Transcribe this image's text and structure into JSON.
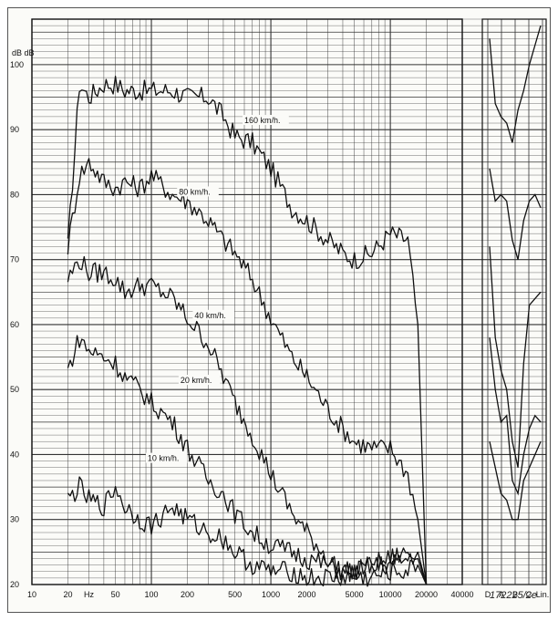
{
  "chart_data": {
    "type": "line",
    "title": "",
    "ylabel": "dB dB",
    "xlabel": "",
    "x_scale": "log",
    "xlim": [
      10,
      40000
    ],
    "ylim": [
      20,
      107
    ],
    "grid": true,
    "legend": "none",
    "x_ticks": [
      {
        "value": 10,
        "label": "10"
      },
      {
        "value": 20,
        "label": "20"
      },
      {
        "value": 30,
        "label": "Hz"
      },
      {
        "value": 50,
        "label": "50"
      },
      {
        "value": 100,
        "label": "100"
      },
      {
        "value": 200,
        "label": "200"
      },
      {
        "value": 500,
        "label": "500"
      },
      {
        "value": 1000,
        "label": "1000"
      },
      {
        "value": 2000,
        "label": "2000"
      },
      {
        "value": 5000,
        "label": "5000"
      },
      {
        "value": 10000,
        "label": "10000"
      },
      {
        "value": 20000,
        "label": "20000"
      },
      {
        "value": 40000,
        "label": "40000"
      }
    ],
    "y_ticks": [
      20,
      30,
      40,
      50,
      60,
      70,
      80,
      90,
      100
    ],
    "weighting_labels": [
      "D",
      "A",
      "B",
      "C",
      "Lin."
    ],
    "series": [
      {
        "name": "160 km/h.",
        "label_at": [
          600,
          91
        ],
        "x": [
          20,
          25,
          30,
          40,
          50,
          60,
          80,
          100,
          150,
          200,
          300,
          400,
          500,
          700,
          1000,
          1500,
          2000,
          3000,
          4000,
          5000,
          7000,
          10000,
          14000,
          17000,
          20000
        ],
        "y": [
          72,
          97,
          95,
          97,
          97,
          96,
          96,
          96,
          96,
          95,
          95,
          92,
          89,
          88,
          84,
          78,
          76,
          73,
          71,
          70,
          71,
          74,
          73,
          60,
          20
        ],
        "w": [
          104,
          94,
          92,
          91,
          88,
          93,
          96,
          100,
          103,
          106
        ]
      },
      {
        "name": "80 km/h.",
        "label_at": [
          170,
          80
        ],
        "x": [
          20,
          25,
          30,
          40,
          50,
          60,
          80,
          100,
          150,
          200,
          300,
          400,
          500,
          700,
          1000,
          1500,
          2000,
          3000,
          4000,
          5000,
          7000,
          10000,
          14000,
          17000,
          20000
        ],
        "y": [
          72,
          83,
          85,
          82,
          81,
          82,
          81,
          83,
          80,
          79,
          76,
          73,
          71,
          67,
          61,
          55,
          52,
          47,
          44,
          42,
          41,
          41,
          37,
          30,
          20
        ],
        "w": [
          84,
          79,
          80,
          79,
          73,
          70,
          76,
          79,
          80,
          78
        ]
      },
      {
        "name": "40 km/h.",
        "label_at": [
          230,
          61
        ],
        "x": [
          20,
          25,
          30,
          40,
          50,
          60,
          80,
          100,
          150,
          200,
          300,
          400,
          500,
          700,
          1000,
          1500,
          2000,
          3000,
          4000,
          5000,
          7000,
          10000,
          14000,
          17000,
          20000
        ],
        "y": [
          67,
          70,
          68,
          68,
          67,
          65,
          66,
          66,
          64,
          61,
          57,
          52,
          48,
          43,
          37,
          31,
          28,
          24,
          22,
          22,
          23,
          24,
          25,
          24,
          20
        ],
        "w": [
          72,
          58,
          53,
          50,
          42,
          38,
          54,
          63,
          64,
          65
        ]
      },
      {
        "name": "20 km/h.",
        "label_at": [
          175,
          51
        ],
        "x": [
          20,
          25,
          30,
          40,
          50,
          60,
          80,
          100,
          150,
          200,
          300,
          400,
          500,
          700,
          1000,
          1500,
          2000,
          3000,
          4000,
          5000,
          7000,
          10000,
          14000,
          17000,
          20000
        ],
        "y": [
          53,
          58,
          56,
          55,
          54,
          52,
          50,
          48,
          45,
          41,
          36,
          34,
          31,
          28,
          26,
          25,
          24,
          23,
          22,
          22,
          23,
          23,
          24,
          25,
          20
        ],
        "w": [
          58,
          50,
          45,
          46,
          36,
          34,
          40,
          44,
          46,
          45
        ]
      },
      {
        "name": "10 km/h.",
        "label_at": [
          93,
          39
        ],
        "x": [
          20,
          25,
          30,
          40,
          50,
          60,
          80,
          100,
          150,
          200,
          300,
          400,
          500,
          700,
          1000,
          1500,
          2000,
          3000,
          4000,
          5000,
          7000,
          10000,
          14000,
          17000,
          20000
        ],
        "y": [
          33,
          35,
          33,
          32,
          35,
          32,
          30,
          29,
          32,
          30,
          28,
          27,
          25,
          23,
          22,
          22,
          21,
          21,
          21,
          21,
          21,
          22,
          22,
          23,
          20
        ],
        "w": [
          42,
          38,
          34,
          33,
          30,
          30,
          36,
          38,
          40,
          42
        ]
      }
    ]
  },
  "footer": {
    "figure_id": "172225/2e"
  }
}
